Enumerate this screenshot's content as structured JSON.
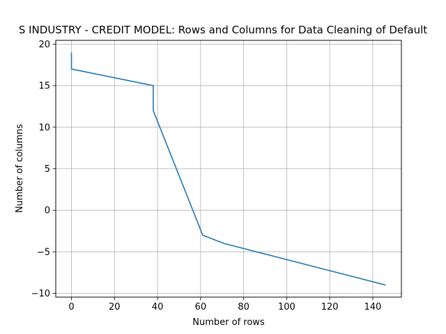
{
  "chart_data": {
    "type": "line",
    "title": "S INDUSTRY - CREDIT MODEL: Rows and Columns for Data Cleaning of Default",
    "xlabel": "Number of rows",
    "ylabel": "Number of columns",
    "xlim": [
      -7.3,
      153.3
    ],
    "ylim": [
      -10.45,
      20.45
    ],
    "xticks": [
      0,
      20,
      40,
      60,
      80,
      100,
      120,
      140
    ],
    "yticks": [
      -10,
      -5,
      0,
      5,
      10,
      15,
      20
    ],
    "grid": true,
    "series": [
      {
        "color": "#1f77b4",
        "x": [
          0,
          0,
          38,
          38,
          61,
          71,
          146
        ],
        "y": [
          19,
          17,
          15,
          12,
          -3,
          -4,
          -9
        ]
      }
    ]
  }
}
